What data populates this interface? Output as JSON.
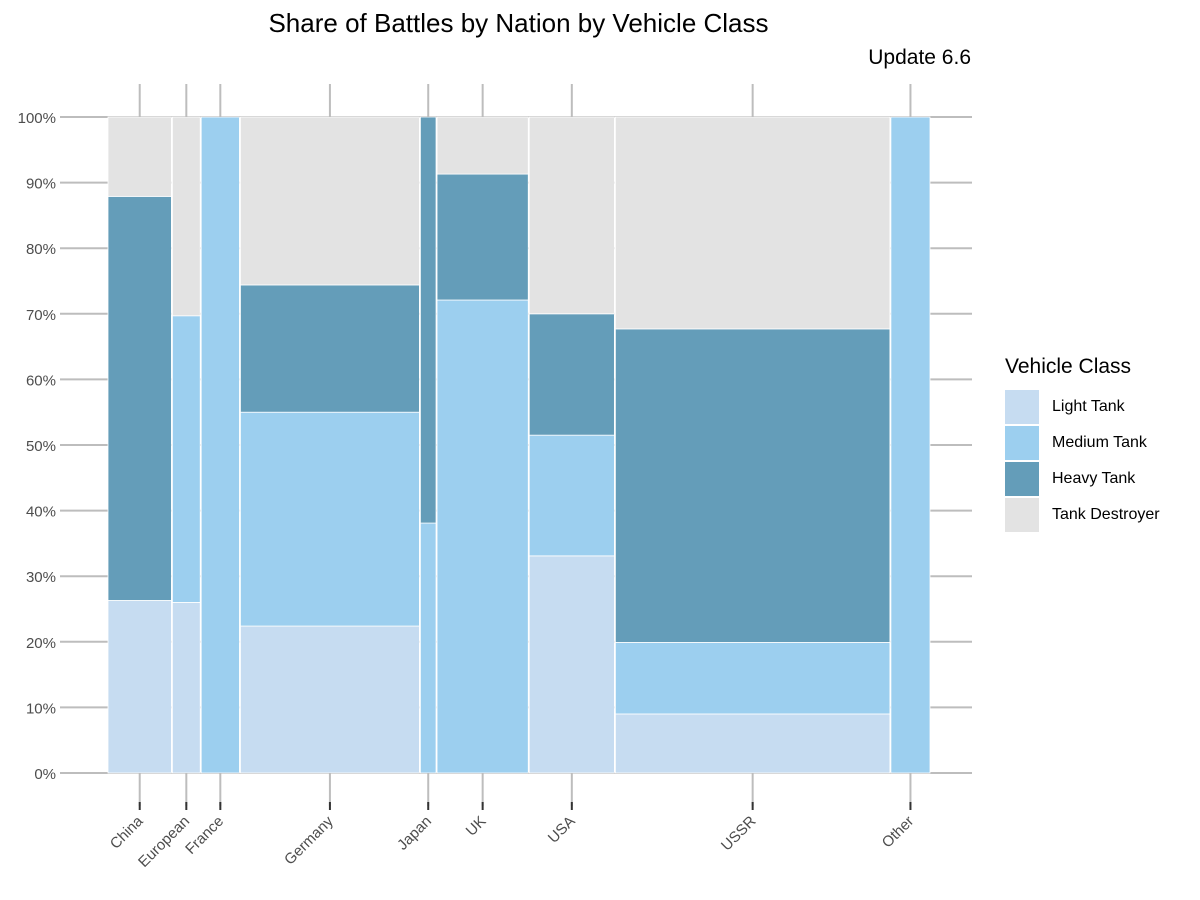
{
  "title": "Share of Battles by Nation by Vehicle Class",
  "subtitle": "Update 6.6",
  "legend": {
    "title": "Vehicle Class",
    "items": [
      {
        "label": "Light Tank",
        "color": "#c6dcf1"
      },
      {
        "label": "Medium Tank",
        "color": "#9ccfef"
      },
      {
        "label": "Heavy Tank",
        "color": "#649db9"
      },
      {
        "label": "Tank Destroyer",
        "color": "#e3e3e3"
      }
    ]
  },
  "chart_data": {
    "type": "mosaic",
    "title": "Share of Battles by Nation by Vehicle Class",
    "subtitle": "Update 6.6",
    "ylim": [
      0,
      100
    ],
    "y_ticks": [
      "0%",
      "10%",
      "20%",
      "30%",
      "40%",
      "50%",
      "60%",
      "70%",
      "80%",
      "90%",
      "100%"
    ],
    "categories": [
      "China",
      "European",
      "France",
      "Germany",
      "Japan",
      "UK",
      "USA",
      "USSR",
      "Other"
    ],
    "category_share_percent": [
      7.3,
      3.2,
      4.4,
      20.6,
      1.8,
      10.5,
      9.8,
      31.6,
      4.5
    ],
    "series": [
      {
        "name": "Light Tank",
        "values": [
          26.3,
          26.0,
          0,
          22.4,
          0,
          0,
          33.1,
          9.0,
          0
        ]
      },
      {
        "name": "Medium Tank",
        "values": [
          0,
          43.7,
          100,
          32.6,
          38.1,
          72.1,
          18.4,
          10.9,
          100
        ]
      },
      {
        "name": "Heavy Tank",
        "values": [
          61.6,
          0,
          0,
          19.4,
          61.9,
          19.2,
          18.5,
          47.8,
          0
        ]
      },
      {
        "name": "Tank Destroyer",
        "values": [
          12.1,
          30.3,
          0,
          25.6,
          0,
          8.7,
          30.0,
          32.3,
          0
        ]
      }
    ],
    "grid": true,
    "legend_position": "right"
  }
}
